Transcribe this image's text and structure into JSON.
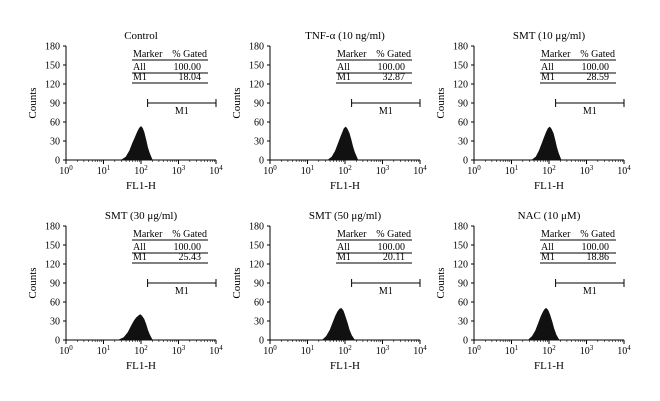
{
  "chart_data": [
    {
      "type": "area",
      "title": "Control",
      "xlabel": "FL1-H",
      "ylabel": "Counts",
      "xscale": "log",
      "xlim": [
        1,
        10000
      ],
      "ylim": [
        0,
        180
      ],
      "xticks": [
        "10^0",
        "10^1",
        "10^2",
        "10^3",
        "10^4"
      ],
      "yticks": [
        0,
        30,
        60,
        90,
        120,
        150,
        180
      ],
      "marker_range": {
        "label": "M1",
        "from": 150,
        "to": 10000,
        "y": 90
      },
      "table": {
        "headers": [
          "Marker",
          "% Gated"
        ],
        "rows": [
          [
            "All",
            "100.00"
          ],
          [
            "M1",
            "18.04"
          ]
        ]
      },
      "x": [
        30,
        40,
        50,
        60,
        70,
        80,
        90,
        100,
        110,
        120,
        135,
        150,
        170,
        200
      ],
      "y": [
        0,
        5,
        15,
        27,
        36,
        44,
        50,
        53,
        50,
        44,
        32,
        20,
        10,
        0
      ]
    },
    {
      "type": "area",
      "title": "TNF-α (10 ng/ml)",
      "xlabel": "FL1-H",
      "ylabel": "Counts",
      "xscale": "log",
      "xlim": [
        1,
        10000
      ],
      "ylim": [
        0,
        180
      ],
      "xticks": [
        "10^0",
        "10^1",
        "10^2",
        "10^3",
        "10^4"
      ],
      "yticks": [
        0,
        30,
        60,
        90,
        120,
        150,
        180
      ],
      "marker_range": {
        "label": "M1",
        "from": 150,
        "to": 10000,
        "y": 90
      },
      "table": {
        "headers": [
          "Marker",
          "% Gated"
        ],
        "rows": [
          [
            "All",
            "100.00"
          ],
          [
            "M1",
            "32.87"
          ]
        ]
      },
      "x": [
        35,
        45,
        55,
        65,
        75,
        85,
        95,
        105,
        115,
        130,
        145,
        160,
        180,
        220
      ],
      "y": [
        0,
        5,
        14,
        25,
        35,
        43,
        50,
        52,
        49,
        42,
        32,
        22,
        12,
        0
      ]
    },
    {
      "type": "area",
      "title": "SMT (10 μg/ml)",
      "xlabel": "FL1-H",
      "ylabel": "Counts",
      "xscale": "log",
      "xlim": [
        1,
        10000
      ],
      "ylim": [
        0,
        180
      ],
      "xticks": [
        "10^0",
        "10^1",
        "10^2",
        "10^3",
        "10^4"
      ],
      "yticks": [
        0,
        30,
        60,
        90,
        120,
        150,
        180
      ],
      "marker_range": {
        "label": "M1",
        "from": 150,
        "to": 10000,
        "y": 90
      },
      "table": {
        "headers": [
          "Marker",
          "% Gated"
        ],
        "rows": [
          [
            "All",
            "100.00"
          ],
          [
            "M1",
            "28.59"
          ]
        ]
      },
      "x": [
        35,
        45,
        55,
        65,
        75,
        85,
        95,
        105,
        115,
        130,
        145,
        160,
        180,
        210
      ],
      "y": [
        0,
        5,
        15,
        26,
        36,
        44,
        50,
        52,
        49,
        42,
        31,
        20,
        10,
        0
      ]
    },
    {
      "type": "area",
      "title": "SMT (30 μg/ml)",
      "xlabel": "FL1-H",
      "ylabel": "Counts",
      "xscale": "log",
      "xlim": [
        1,
        10000
      ],
      "ylim": [
        0,
        180
      ],
      "xticks": [
        "10^0",
        "10^1",
        "10^2",
        "10^3",
        "10^4"
      ],
      "yticks": [
        0,
        30,
        60,
        90,
        120,
        150,
        180
      ],
      "marker_range": {
        "label": "M1",
        "from": 150,
        "to": 10000,
        "y": 90
      },
      "table": {
        "headers": [
          "Marker",
          "% Gated"
        ],
        "rows": [
          [
            "All",
            "100.00"
          ],
          [
            "M1",
            "25.43"
          ]
        ]
      },
      "x": [
        25,
        35,
        45,
        55,
        65,
        75,
        85,
        95,
        105,
        120,
        135,
        150,
        170,
        200
      ],
      "y": [
        0,
        4,
        12,
        22,
        30,
        35,
        38,
        40,
        38,
        33,
        25,
        16,
        8,
        0
      ]
    },
    {
      "type": "area",
      "title": "SMT (50 μg/ml)",
      "xlabel": "FL1-H",
      "ylabel": "Counts",
      "xscale": "log",
      "xlim": [
        1,
        10000
      ],
      "ylim": [
        0,
        180
      ],
      "xticks": [
        "10^0",
        "10^1",
        "10^2",
        "10^3",
        "10^4"
      ],
      "yticks": [
        0,
        30,
        60,
        90,
        120,
        150,
        180
      ],
      "marker_range": {
        "label": "M1",
        "from": 150,
        "to": 10000,
        "y": 90
      },
      "table": {
        "headers": [
          "Marker",
          "% Gated"
        ],
        "rows": [
          [
            "All",
            "100.00"
          ],
          [
            "M1",
            "20.11"
          ]
        ]
      },
      "x": [
        25,
        32,
        40,
        48,
        56,
        64,
        72,
        80,
        90,
        100,
        115,
        130,
        150,
        180
      ],
      "y": [
        0,
        6,
        16,
        28,
        38,
        45,
        49,
        50,
        46,
        38,
        27,
        16,
        7,
        0
      ]
    },
    {
      "type": "area",
      "title": "NAC (10 μM)",
      "xlabel": "FL1-H",
      "ylabel": "Counts",
      "xscale": "log",
      "xlim": [
        1,
        10000
      ],
      "ylim": [
        0,
        180
      ],
      "xticks": [
        "10^0",
        "10^1",
        "10^2",
        "10^3",
        "10^4"
      ],
      "yticks": [
        0,
        30,
        60,
        90,
        120,
        150,
        180
      ],
      "marker_range": {
        "label": "M1",
        "from": 150,
        "to": 10000,
        "y": 90
      },
      "table": {
        "headers": [
          "Marker",
          "% Gated"
        ],
        "rows": [
          [
            "All",
            "100.00"
          ],
          [
            "M1",
            "18.86"
          ]
        ]
      },
      "x": [
        28,
        36,
        44,
        52,
        60,
        68,
        76,
        84,
        94,
        105,
        120,
        135,
        155,
        185
      ],
      "y": [
        0,
        6,
        15,
        26,
        36,
        43,
        48,
        50,
        47,
        40,
        29,
        18,
        8,
        0
      ]
    }
  ]
}
